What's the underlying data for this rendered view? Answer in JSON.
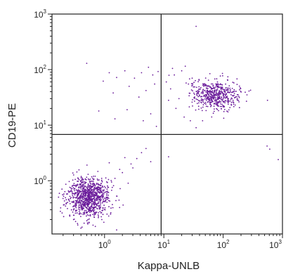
{
  "chart_data": {
    "type": "scatter",
    "title": "",
    "xlabel": "Kappa-UNLB",
    "ylabel": "CD19-PE",
    "x_scale": "log",
    "y_scale": "log",
    "xlim": [
      0.13,
      1000
    ],
    "ylim": [
      0.11,
      1000
    ],
    "x_ticks": [
      {
        "base": "10",
        "exp": "0",
        "value": 1
      },
      {
        "base": "10",
        "exp": "1",
        "value": 10
      },
      {
        "base": "10",
        "exp": "2",
        "value": 100
      },
      {
        "base": "10",
        "exp": "3",
        "value": 1000
      }
    ],
    "y_ticks": [
      {
        "base": "10",
        "exp": "0",
        "value": 1
      },
      {
        "base": "10",
        "exp": "1",
        "value": 10
      },
      {
        "base": "10",
        "exp": "2",
        "value": 100
      },
      {
        "base": "10",
        "exp": "3",
        "value": 1000
      }
    ],
    "quadrant_gates": {
      "x": 9,
      "y": 6.8
    },
    "point_color": "#6a1b9a",
    "clusters": [
      {
        "center": [
          0.55,
          0.5
        ],
        "count": 950
      },
      {
        "center": [
          75,
          35
        ],
        "count": 520
      }
    ],
    "outliers": [
      [
        0.22,
        0.35
      ],
      [
        0.18,
        0.28
      ],
      [
        0.35,
        0.17
      ],
      [
        0.4,
        0.14
      ],
      [
        0.7,
        0.15
      ],
      [
        0.3,
        0.2
      ],
      [
        1.5,
        1.1
      ],
      [
        2.0,
        1.4
      ],
      [
        2.8,
        2.0
      ],
      [
        3.5,
        2.5
      ],
      [
        4.2,
        3.2
      ],
      [
        5.0,
        3.8
      ],
      [
        1.8,
        1.6
      ],
      [
        2.5,
        0.9
      ],
      [
        3.0,
        1.7
      ],
      [
        6.0,
        2.2
      ],
      [
        1.2,
        2.1
      ],
      [
        2.2,
        2.6
      ],
      [
        0.9,
        0.2
      ],
      [
        1.1,
        0.25
      ],
      [
        0.5,
        130
      ],
      [
        0.95,
        62
      ],
      [
        1.2,
        88
      ],
      [
        1.6,
        72
      ],
      [
        2.2,
        95
      ],
      [
        2.6,
        50
      ],
      [
        3.2,
        70
      ],
      [
        4.2,
        88
      ],
      [
        5.0,
        42
      ],
      [
        6.5,
        80
      ],
      [
        8.0,
        92
      ],
      [
        7.0,
        55
      ],
      [
        3.8,
        32
      ],
      [
        5.5,
        110
      ],
      [
        0.8,
        18
      ],
      [
        1.5,
        13
      ],
      [
        2.4,
        19
      ],
      [
        4.5,
        12
      ],
      [
        6.0,
        16
      ],
      [
        7.5,
        9.5
      ],
      [
        1.4,
        38
      ],
      [
        11,
        60
      ],
      [
        13,
        45
      ],
      [
        15,
        80
      ],
      [
        18,
        30
      ],
      [
        20,
        95
      ],
      [
        23,
        115
      ],
      [
        26,
        55
      ],
      [
        30,
        70
      ],
      [
        16,
        20
      ],
      [
        22,
        14
      ],
      [
        28,
        12
      ],
      [
        35,
        9
      ],
      [
        45,
        12
      ],
      [
        12,
        28
      ],
      [
        14,
        105
      ],
      [
        35,
        600
      ],
      [
        550,
        4.2
      ],
      [
        610,
        3.7
      ],
      [
        850,
        2.4
      ],
      [
        560,
        28
      ],
      [
        12,
        2.7
      ],
      [
        1.6,
        0.13
      ]
    ]
  }
}
